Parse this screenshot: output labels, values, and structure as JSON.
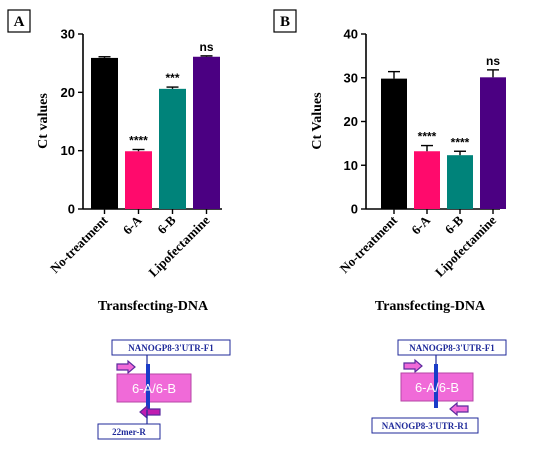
{
  "chart_data": [
    {
      "panel": "A",
      "type": "bar",
      "categories": [
        "No-treatment",
        "6-A",
        "6-B",
        "Lipofectamine"
      ],
      "values": [
        25.9,
        9.9,
        20.6,
        26.1
      ],
      "errors": [
        0.2,
        0.3,
        0.3,
        0.15
      ],
      "colors": [
        "#000000",
        "#ff0a6c",
        "#00837a",
        "#4b0082"
      ],
      "significance": [
        "",
        "****",
        "***",
        "ns"
      ],
      "ylabel": "Ct values",
      "xlabel": "Transfecting-DNA",
      "ylim": [
        0,
        30
      ],
      "yticks": [
        0,
        10,
        20,
        30
      ],
      "grid": false
    },
    {
      "panel": "B",
      "type": "bar",
      "categories": [
        "No-treatment",
        "6-A",
        "6-B",
        "Lipofectamine"
      ],
      "values": [
        29.8,
        13.2,
        12.3,
        30.1
      ],
      "errors": [
        1.6,
        1.3,
        0.9,
        1.7
      ],
      "colors": [
        "#000000",
        "#ff0a6c",
        "#00837a",
        "#4b0082"
      ],
      "significance": [
        "",
        "****",
        "****",
        "ns"
      ],
      "ylabel": "Ct Values",
      "xlabel": "Transfecting-DNA",
      "ylim": [
        0,
        40
      ],
      "yticks": [
        0,
        10,
        20,
        30,
        40
      ],
      "grid": false
    }
  ],
  "diagrams": {
    "A": {
      "forward_primer": "NANOGP8-3'UTR-F1",
      "construct": "6-A/6-B",
      "reverse_primer": "22mer-R"
    },
    "B": {
      "forward_primer": "NANOGP8-3'UTR-F1",
      "construct": "6-A/6-B",
      "reverse_primer": "NANOGP8-3'UTR-R1"
    }
  }
}
